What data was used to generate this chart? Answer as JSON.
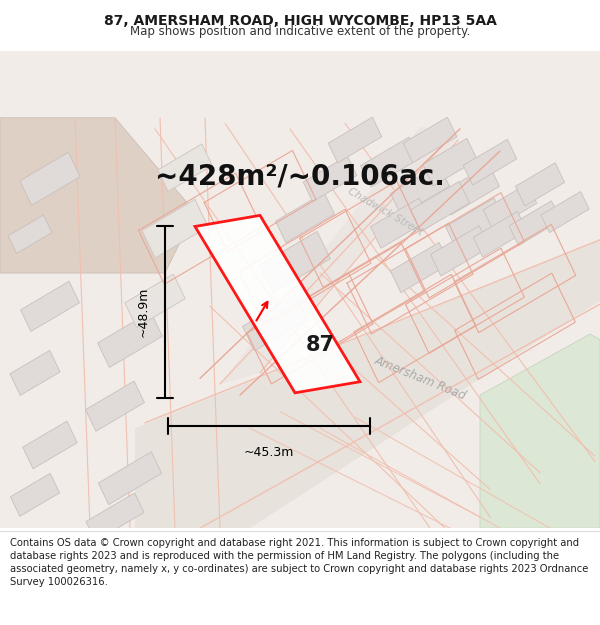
{
  "title": "87, AMERSHAM ROAD, HIGH WYCOMBE, HP13 5AA",
  "subtitle": "Map shows position and indicative extent of the property.",
  "area_text": "~428m²/~0.106ac.",
  "label_87": "87",
  "dim_width": "~45.3m",
  "dim_height": "~48.9m",
  "road_label": "Amersham Road",
  "street_label": "Chadwick Street",
  "footer_text": "Contains OS data © Crown copyright and database right 2021. This information is subject to Crown copyright and database rights 2023 and is reproduced with the permission of HM Land Registry. The polygons (including the associated geometry, namely x, y co-ordinates) are subject to Crown copyright and database rights 2023 Ordnance Survey 100026316.",
  "map_bg": "#f2ece8",
  "road_fill": "#e8e0da",
  "building_fill": "#e0dbd8",
  "building_edge": "#c8c0bc",
  "pink": "#e8a898",
  "pink_light": "#f0c0b0",
  "red": "#ff0000",
  "green_fill": "#d8e8d0",
  "tan_fill": "#e0cfc8",
  "title_fontsize": 10,
  "subtitle_fontsize": 8.5,
  "area_fontsize": 20,
  "footer_fontsize": 7.2
}
